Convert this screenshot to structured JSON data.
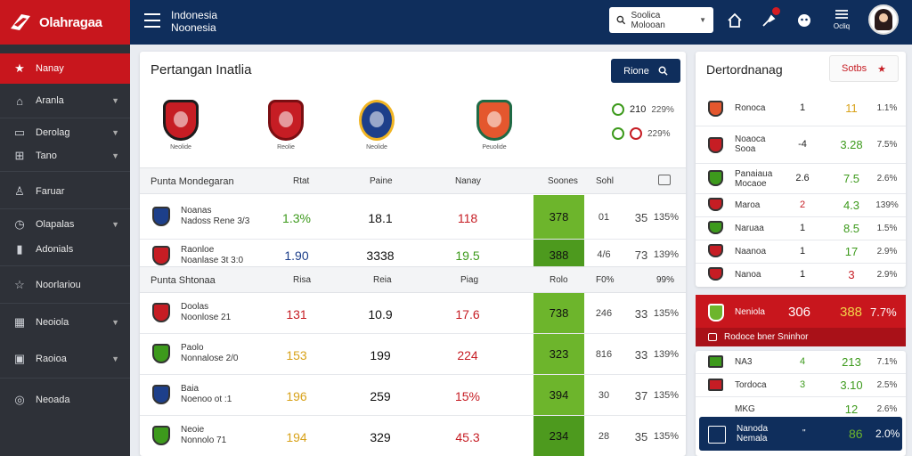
{
  "brand": {
    "name": "Olahragaa"
  },
  "topbar": {
    "region_line1": "Indonesia",
    "region_line2": "Noonesia",
    "search_label": "Soolica Molooan",
    "lang_label": "Ocliq"
  },
  "sidebar": {
    "items": [
      {
        "label": "Nanay",
        "icon": "star-icon"
      },
      {
        "label": "Aranla",
        "icon": "home-icon"
      },
      {
        "label": "Derolag",
        "icon": "monitor-icon"
      },
      {
        "label": "Tano",
        "icon": "grid-icon"
      },
      {
        "label": "Faruar",
        "icon": "user-icon"
      },
      {
        "label": "Olapalas",
        "icon": "clock-icon"
      },
      {
        "label": "Adonials",
        "icon": "chart-icon"
      },
      {
        "label": "Noorlariou",
        "icon": "star-outline-icon"
      },
      {
        "label": "Neoiola",
        "icon": "calendar-icon"
      },
      {
        "label": "Raoioa",
        "icon": "calendar-alt-icon"
      },
      {
        "label": "Neoada",
        "icon": "power-icon"
      }
    ]
  },
  "main": {
    "title": "Pertangan Inatlia",
    "button_label": "Rione",
    "crests": [
      {
        "caption": "Neolide",
        "color": "#c61d24"
      },
      {
        "caption": "Reolie",
        "color": "#c61d24"
      },
      {
        "caption": "Neolide",
        "color": "#f0b423"
      },
      {
        "caption": "Peuolide",
        "color": "#e4572e"
      }
    ],
    "odds": [
      {
        "value": "210",
        "pct": "229%",
        "color": "#3d9a1c"
      },
      {
        "value": "",
        "pct": "229%",
        "color": "#c61d24"
      }
    ],
    "groups": [
      {
        "title": "Punta Mondegaran",
        "cols": [
          "Rtat",
          "Paine",
          "Nanay",
          "Soones",
          "Sohl"
        ],
        "rows": [
          {
            "name1": "Noanas",
            "name2": "Nadoss Rene 3/3",
            "c1": "1.3%",
            "c1c": "green",
            "c2": "18.1",
            "c3": "118",
            "hl": "378",
            "s1": "01",
            "s2": "35",
            "s3": "135%",
            "ico": "#1d3f8a"
          },
          {
            "name1": "Raonloe",
            "name2": "Noanlase 3t 3:0",
            "c1": "1.90",
            "c1c": "blue",
            "c2": "3338",
            "c3": "19.5",
            "hl": "388",
            "s1": "4/6",
            "s2": "73",
            "s3": "139%",
            "ico": "#c61d24"
          }
        ]
      },
      {
        "title": "Punta Shtonaa",
        "cols": [
          "Risa",
          "Reia",
          "Piag",
          "Rolo",
          "F0%",
          "99%"
        ],
        "rows": [
          {
            "name1": "Doolas",
            "name2": "Noonlose 21",
            "c1": "131",
            "c1c": "red",
            "c2": "10.9",
            "c3": "17.6",
            "hl": "738",
            "s1": "246",
            "s2": "33",
            "s3": "135%",
            "ico": "#c61d24"
          },
          {
            "name1": "Paolo",
            "name2": "Nonnalose 2/0",
            "c1": "153",
            "c1c": "gold",
            "c2": "199",
            "c3": "224",
            "hl": "323",
            "s1": "816",
            "s2": "33",
            "s3": "139%",
            "ico": "#3d9a1c"
          },
          {
            "name1": "Baia",
            "name2": "Noenoo ot :1",
            "c1": "196",
            "c1c": "gold",
            "c2": "259",
            "c3": "15%",
            "hl": "394",
            "s1": "30",
            "s2": "37",
            "s3": "135%",
            "ico": "#1d3f8a"
          },
          {
            "name1": "Neoie",
            "name2": "Nonnolo 71",
            "c1": "194",
            "c1c": "gold",
            "c2": "329",
            "c3": "45.3",
            "hl": "234",
            "s1": "28",
            "s2": "35",
            "s3": "135%",
            "ico": "#3d9a1c"
          }
        ]
      }
    ]
  },
  "right": {
    "title": "Dertordnanag",
    "button_label": "Sotbs",
    "rows": [
      {
        "name1": "Ronoca",
        "name2": "",
        "a": "1",
        "b": "11",
        "bc": "gold",
        "p": "1.1%",
        "ico": "#e4572e"
      },
      {
        "name1": "Noaoca",
        "name2": "Sooa",
        "a": "-4",
        "b": "3.28",
        "bc": "green",
        "p": "7.5%",
        "ico": "#c61d24"
      },
      {
        "name1": "Panaiaua",
        "name2": "Mocaoe",
        "a": "2.6",
        "b": "7.5",
        "bc": "green",
        "p": "2.6%",
        "ico": "#3d9a1c"
      },
      {
        "name1": "Maroa",
        "name2": "",
        "a": "2",
        "b": "4.3",
        "bc": "green",
        "p": "139%",
        "ico": "#c61d24"
      },
      {
        "name1": "Naruaa",
        "name2": "",
        "a": "1",
        "b": "8.5",
        "bc": "green",
        "p": "1.5%",
        "ico": "#3d9a1c"
      },
      {
        "name1": "Naanoa",
        "name2": "",
        "a": "1",
        "b": "17",
        "bc": "green",
        "p": "2.9%",
        "ico": "#c61d24"
      },
      {
        "name1": "Nanoa",
        "name2": "",
        "a": "1",
        "b": "3",
        "bc": "red",
        "p": "2.9%",
        "ico": "#c61d24"
      }
    ],
    "hero": {
      "name": "Neniola",
      "a": "306",
      "b": "388",
      "p": "7.7%",
      "sub": "Rodoce bner Sninhor"
    },
    "rows2": [
      {
        "name1": "NA3",
        "name2": "",
        "a": "4",
        "b": "213",
        "bc": "green",
        "p": "7.1%",
        "ico": "#3d9a1c"
      },
      {
        "name1": "Tordoca",
        "name2": "",
        "a": "3",
        "b": "3.10",
        "bc": "green",
        "p": "2.5%",
        "ico": "#c61d24"
      },
      {
        "name1": "MKG",
        "name2": "",
        "a": "",
        "b": "12",
        "bc": "green",
        "p": "2.6%",
        "ico": "#3d9a1c"
      }
    ],
    "bottom": {
      "name1": "Nanoda",
      "name2": "Nemala",
      "a": "\"",
      "b": "86",
      "p": "2.0%"
    }
  },
  "colors": {
    "accent": "#c8161d",
    "navy": "#0f2e5c",
    "green": "#6db52c",
    "sidebar": "#2e3138"
  }
}
